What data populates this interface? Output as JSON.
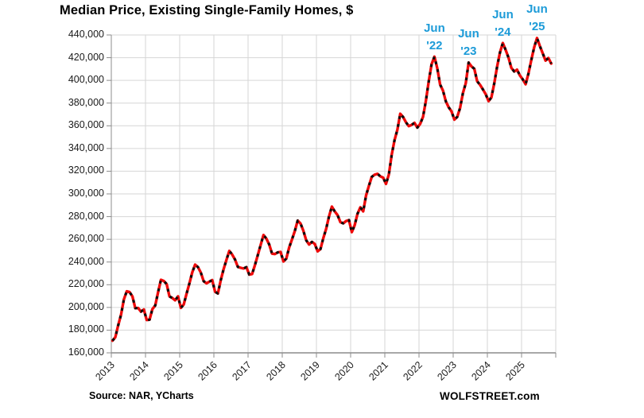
{
  "title": "Median Price, Existing Single-Family Homes, $",
  "source_note": "Source: NAR, YCharts",
  "watermark": "WOLFSTREET.com",
  "colors": {
    "line_red": "#ee0a0a",
    "dash_black": "#0d0d0d",
    "annotation_blue": "#1d9bd8",
    "gridline": "#d6d6d6",
    "axis_line": "#8c8c8c",
    "tick_text": "#1a1a1a"
  },
  "chart_data": {
    "type": "line",
    "title": "Median Price, Existing Single-Family Homes, $",
    "xlabel": "",
    "ylabel": "",
    "x_unit": "month",
    "x_start": "2013-01",
    "x_end": "2025-11",
    "ylim": [
      160000,
      440000
    ],
    "y_tick_step": 20000,
    "y_tick_labels": [
      "160,000",
      "180,000",
      "200,000",
      "220,000",
      "240,000",
      "260,000",
      "280,000",
      "300,000",
      "320,000",
      "340,000",
      "360,000",
      "380,000",
      "400,000",
      "420,000",
      "440,000"
    ],
    "x_tick_labels": [
      "2013",
      "2014",
      "2015",
      "2016",
      "2017",
      "2018",
      "2019",
      "2020",
      "2021",
      "2022",
      "2023",
      "2024",
      "2025"
    ],
    "grid": true,
    "legend": "none",
    "annotations": [
      {
        "line1": "Jun",
        "line2": "'22",
        "month": "2022-06"
      },
      {
        "line1": "Jun",
        "line2": "'23",
        "month": "2023-06"
      },
      {
        "line1": "Jun",
        "line2": "'24",
        "month": "2024-06"
      },
      {
        "line1": "Jun",
        "line2": "'25",
        "month": "2025-06"
      }
    ],
    "series": [
      {
        "name": "Median price, existing single-family homes, $",
        "style": "red line with black dash markers",
        "monthly_values_by_year": {
          "2013": [
            170700,
            173800,
            184300,
            193600,
            207100,
            214200,
            213500,
            209700,
            199300,
            199500,
            196300,
            198200
          ],
          "2014": [
            188900,
            189200,
            198500,
            201700,
            213400,
            224300,
            223300,
            220600,
            209700,
            208300,
            206300,
            209800
          ],
          "2015": [
            199600,
            202600,
            212100,
            221200,
            230900,
            237700,
            235500,
            230700,
            223100,
            221200,
            222700,
            224100
          ],
          "2016": [
            213800,
            212300,
            224000,
            233700,
            241900,
            249800,
            246600,
            242200,
            235700,
            234900,
            234300,
            235500
          ],
          "2017": [
            228900,
            229400,
            237300,
            246100,
            255000,
            263800,
            260600,
            255500,
            247400,
            247000,
            248500,
            248900
          ],
          "2018": [
            240500,
            243000,
            252700,
            259900,
            267300,
            276500,
            273900,
            267500,
            259100,
            255400,
            257700,
            255900
          ],
          "2019": [
            249400,
            251400,
            261100,
            269300,
            280200,
            288800,
            284600,
            281300,
            275100,
            274100,
            276100,
            276900
          ],
          "2020": [
            266300,
            272400,
            282500,
            288200,
            284600,
            298600,
            307100,
            315000,
            316900,
            317700,
            315500,
            314300
          ],
          "2021": [
            308800,
            317100,
            334500,
            347400,
            356600,
            370600,
            367700,
            363100,
            359700,
            360800,
            362600,
            358400
          ],
          "2022": [
            361700,
            367900,
            382000,
            399100,
            414200,
            420900,
            410600,
            396300,
            391000,
            381500,
            376300,
            372700
          ],
          "2023": [
            365400,
            367800,
            375700,
            388800,
            397500,
            415700,
            412300,
            410200,
            399200,
            396100,
            392100,
            387800
          ],
          "2024": [
            381700,
            385000,
            397400,
            412100,
            424500,
            432900,
            426800,
            420000,
            411000,
            407800,
            409400,
            404300
          ],
          "2025": [
            400900,
            396600,
            406000,
            417900,
            429000,
            437300,
            430300,
            423900,
            417400,
            419700,
            414800
          ]
        }
      }
    ]
  }
}
